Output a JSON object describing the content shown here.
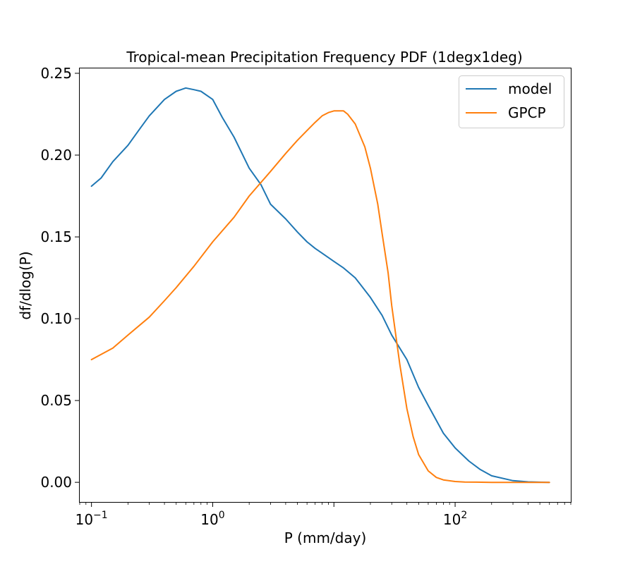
{
  "chart_data": {
    "type": "line",
    "title": "Tropical-mean Precipitation Frequency PDF (1degx1deg)",
    "xlabel": "P (mm/day)",
    "ylabel": "df/dlog(P)",
    "xscale": "log",
    "xlim": [
      0.08,
      900
    ],
    "ylim": [
      -0.012,
      0.253
    ],
    "xticks": [
      {
        "value": 0.1,
        "base": "10",
        "exp": "−1"
      },
      {
        "value": 1,
        "base": "10",
        "exp": "0"
      },
      {
        "value": 100,
        "base": "10",
        "exp": "2"
      }
    ],
    "xticks_hidden_major": [
      10
    ],
    "yticks": [
      {
        "value": 0.0,
        "label": "0.00"
      },
      {
        "value": 0.05,
        "label": "0.05"
      },
      {
        "value": 0.1,
        "label": "0.10"
      },
      {
        "value": 0.15,
        "label": "0.15"
      },
      {
        "value": 0.2,
        "label": "0.20"
      },
      {
        "value": 0.25,
        "label": "0.25"
      }
    ],
    "legend_position": "top-right",
    "series": [
      {
        "name": "model",
        "color": "#1f77b4",
        "x": [
          0.1,
          0.12,
          0.15,
          0.2,
          0.25,
          0.3,
          0.4,
          0.5,
          0.6,
          0.7,
          0.8,
          1.0,
          1.2,
          1.5,
          2.0,
          2.5,
          3.0,
          4.0,
          5.0,
          6.0,
          7.0,
          8.0,
          10,
          12,
          15,
          20,
          25,
          30,
          40,
          50,
          60,
          80,
          100,
          130,
          160,
          200,
          300,
          400,
          600
        ],
        "y": [
          0.181,
          0.186,
          0.196,
          0.206,
          0.216,
          0.224,
          0.234,
          0.239,
          0.241,
          0.24,
          0.239,
          0.234,
          0.223,
          0.211,
          0.192,
          0.182,
          0.17,
          0.161,
          0.153,
          0.147,
          0.143,
          0.14,
          0.135,
          0.131,
          0.125,
          0.113,
          0.102,
          0.09,
          0.075,
          0.058,
          0.047,
          0.03,
          0.021,
          0.013,
          0.008,
          0.004,
          0.001,
          0.0003,
          0.0
        ]
      },
      {
        "name": "GPCP",
        "color": "#ff7f0e",
        "x": [
          0.1,
          0.15,
          0.2,
          0.3,
          0.4,
          0.5,
          0.7,
          1.0,
          1.5,
          2.0,
          3.0,
          4.0,
          5.0,
          6.0,
          7.0,
          8.0,
          9.0,
          10,
          11,
          12,
          13,
          15,
          18,
          20,
          23,
          25,
          28,
          30,
          35,
          40,
          45,
          50,
          60,
          70,
          80,
          100,
          120,
          150,
          200,
          300,
          600
        ],
        "y": [
          0.075,
          0.082,
          0.09,
          0.101,
          0.111,
          0.119,
          0.132,
          0.147,
          0.162,
          0.175,
          0.19,
          0.201,
          0.209,
          0.215,
          0.22,
          0.224,
          0.226,
          0.227,
          0.227,
          0.227,
          0.225,
          0.219,
          0.205,
          0.192,
          0.17,
          0.152,
          0.128,
          0.108,
          0.072,
          0.045,
          0.028,
          0.017,
          0.007,
          0.003,
          0.0015,
          0.0005,
          0.0002,
          0.0001,
          0.0,
          0.0,
          0.0
        ]
      }
    ]
  }
}
